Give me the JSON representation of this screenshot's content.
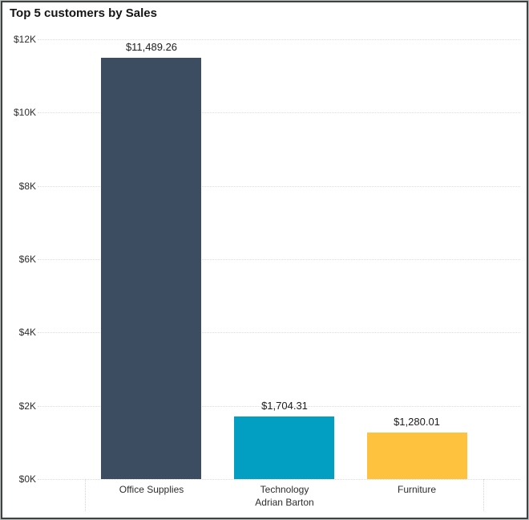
{
  "chart_data": {
    "type": "bar",
    "title": "Top 5 customers by Sales",
    "categories": [
      "Office Supplies",
      "Technology",
      "Furniture"
    ],
    "values": [
      11489.26,
      1704.31,
      1280.01
    ],
    "data_labels": [
      "$11,489.26",
      "$1,704.31",
      "$1,280.01"
    ],
    "bar_colors": [
      "#3c4d62",
      "#029fc2",
      "#fec23e"
    ],
    "axis_group_label": "Adrian Barton",
    "y_ticks": [
      0,
      2000,
      4000,
      6000,
      8000,
      10000,
      12000
    ],
    "y_tick_labels": [
      "$0K",
      "$2K",
      "$4K",
      "$6K",
      "$8K",
      "$10K",
      "$12K"
    ],
    "ylim": [
      0,
      12000
    ],
    "xlabel": "",
    "ylabel": "",
    "grid": "dotted-horizontal",
    "legend": "none"
  }
}
